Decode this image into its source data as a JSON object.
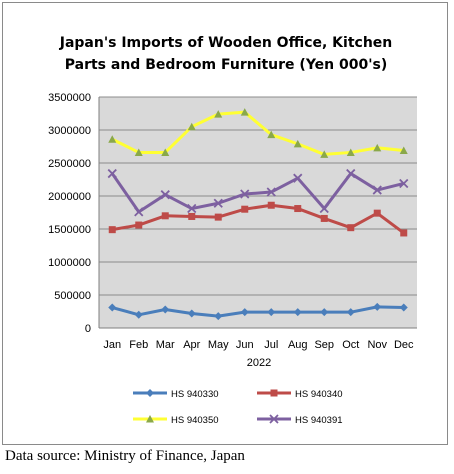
{
  "chart_data": {
    "type": "line",
    "title_lines": [
      "Japan's Imports of  Wooden  Office, Kitchen",
      "Parts and Bedroom Furniture (Yen 000's)"
    ],
    "categories": [
      "Jan",
      "Feb",
      "Mar",
      "Apr",
      "May",
      "Jun",
      "Jul",
      "Aug",
      "Sep",
      "Oct",
      "Nov",
      "Dec"
    ],
    "xlabel": "2022",
    "ylabel": "",
    "ylim": [
      0,
      3500000
    ],
    "yticks": [
      "3500000",
      "3000000",
      "2500000",
      "2000000",
      "1500000",
      "1000000",
      "500000",
      "0"
    ],
    "grid": true,
    "legend_position": "bottom",
    "plot_background": "#d9d9d9",
    "series": [
      {
        "name": "HS 940330",
        "color": "#4a7ebb",
        "marker": "diamond",
        "values": [
          310000,
          200000,
          280000,
          220000,
          180000,
          240000,
          240000,
          240000,
          240000,
          240000,
          320000,
          310000
        ]
      },
      {
        "name": "HS 940340",
        "color": "#be4b48",
        "marker": "square",
        "values": [
          1490000,
          1560000,
          1700000,
          1690000,
          1680000,
          1800000,
          1860000,
          1810000,
          1660000,
          1520000,
          1740000,
          1440000
        ]
      },
      {
        "name": "HS 940350",
        "color": "#ffff33",
        "marker": "triangle",
        "marker_color": "#8aa84a",
        "values": [
          2860000,
          2660000,
          2660000,
          3050000,
          3240000,
          3270000,
          2930000,
          2790000,
          2630000,
          2660000,
          2730000,
          2690000
        ]
      },
      {
        "name": "HS 940391",
        "color": "#7d60a0",
        "marker": "x",
        "values": [
          2340000,
          1760000,
          2020000,
          1810000,
          1890000,
          2030000,
          2060000,
          2270000,
          1810000,
          2340000,
          2090000,
          2190000
        ]
      }
    ]
  },
  "source_note": "Data source: Ministry of Finance, Japan"
}
